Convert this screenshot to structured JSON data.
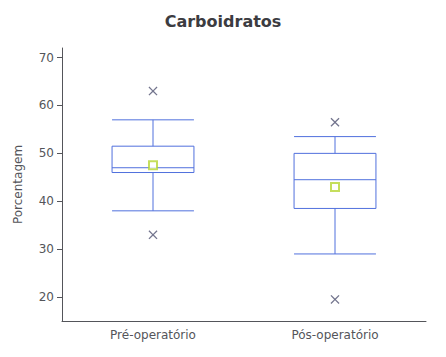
{
  "chart_data": {
    "type": "box",
    "title": "Carboidratos",
    "ylabel": "Porcentagem",
    "categories": [
      "Pré-operatório",
      "Pós-operatório"
    ],
    "boxes": [
      {
        "q1": 46.0,
        "median": 47.0,
        "q3": 51.5,
        "whisker_low": 38.0,
        "whisker_high": 57.0,
        "mean": 47.5,
        "outliers": [
          63.0,
          33.0
        ]
      },
      {
        "q1": 38.5,
        "median": 44.5,
        "q3": 50.0,
        "whisker_low": 29.0,
        "whisker_high": 53.5,
        "mean": 43.0,
        "outliers": [
          56.5,
          19.5
        ]
      }
    ],
    "ylim": [
      15,
      72
    ],
    "yticks": [
      20,
      30,
      40,
      50,
      60,
      70
    ],
    "grid": false
  }
}
